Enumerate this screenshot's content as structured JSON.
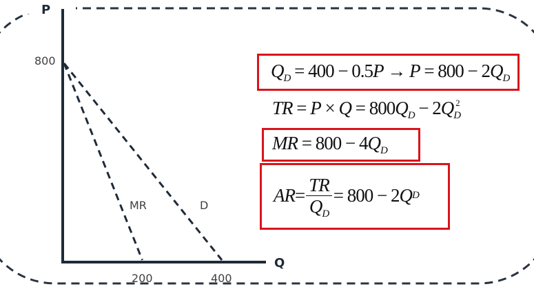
{
  "graph": {
    "y_axis_label": "P",
    "x_axis_label": "Q",
    "y_tick": "800",
    "x_ticks": [
      "200",
      "400"
    ],
    "curves": [
      {
        "label": "MR",
        "p_intercept": 800,
        "q_intercept": 200
      },
      {
        "label": "D",
        "p_intercept": 800,
        "q_intercept": 400
      }
    ],
    "axis_color": "#1f2a38",
    "box_color": "#d9141b"
  },
  "equations": {
    "demand": {
      "q": "Q",
      "sub": "D",
      "rest": " = 400 − 0.5",
      "p1": "P",
      "arrow": " → ",
      "p2": "P",
      "rest2": " = 800 − 2",
      "q2": "Q",
      "sub2": "D"
    },
    "tr": {
      "lhs": "TR",
      "eq1": " = ",
      "p": "P",
      "times": " × ",
      "q": "Q",
      "eq2": " = 800",
      "q2": "Q",
      "sub2": "D",
      "minus": " − 2",
      "q3": "Q",
      "sub3": "D",
      "sup3": "2"
    },
    "mr": {
      "lhs": "MR",
      "rest": " = 800 − 4",
      "q": "Q",
      "sub": "D"
    },
    "ar": {
      "lhs": "AR",
      "eq1": " = ",
      "num": "TR",
      "den": "Q",
      "den_sub": "D",
      "rest": " = 800 − 2",
      "q": "Q",
      "sub": "D"
    }
  }
}
